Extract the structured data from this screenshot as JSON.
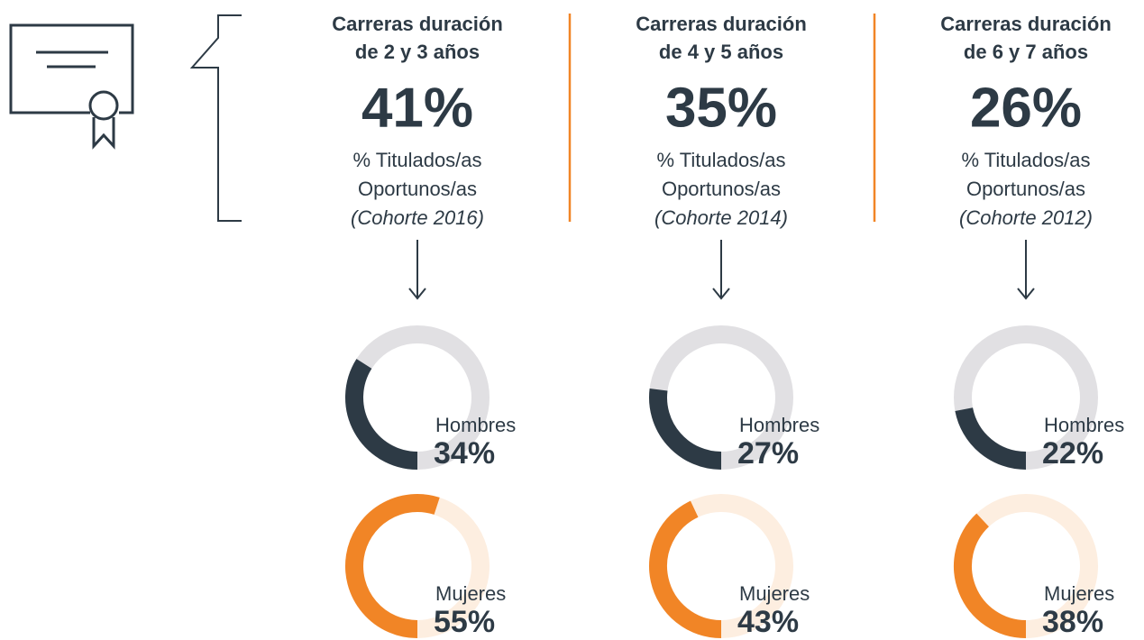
{
  "columns": [
    {
      "title": [
        "Carreras duración",
        "de 2 y 3 años"
      ],
      "value": "41%",
      "subtitle": [
        "% Titulados/as",
        "Oportunos/as",
        "(Cohorte 2016)"
      ],
      "hombres": {
        "label": "Hombres",
        "value": 34,
        "value_label": "34%"
      },
      "mujeres": {
        "label": "Mujeres",
        "value": 55,
        "value_label": "55%"
      }
    },
    {
      "title": [
        "Carreras duración",
        "de 4 y 5 años"
      ],
      "value": "35%",
      "subtitle": [
        "% Titulados/as",
        "Oportunos/as",
        "(Cohorte 2014)"
      ],
      "hombres": {
        "label": "Hombres",
        "value": 27,
        "value_label": "27%"
      },
      "mujeres": {
        "label": "Mujeres",
        "value": 43,
        "value_label": "43%"
      }
    },
    {
      "title": [
        "Carreras duración",
        "de 6 y 7 años"
      ],
      "value": "26%",
      "subtitle": [
        "% Titulados/as",
        "Oportunos/as",
        "(Cohorte 2012)"
      ],
      "hombres": {
        "label": "Hombres",
        "value": 22,
        "value_label": "22%"
      },
      "mujeres": {
        "label": "Mujeres",
        "value": 38,
        "value_label": "38%"
      }
    }
  ],
  "colors": {
    "dark": "#2d3a45",
    "dark_track": "#e1e0e3",
    "orange": "#f18526",
    "orange_track": "#fdeee0"
  }
}
